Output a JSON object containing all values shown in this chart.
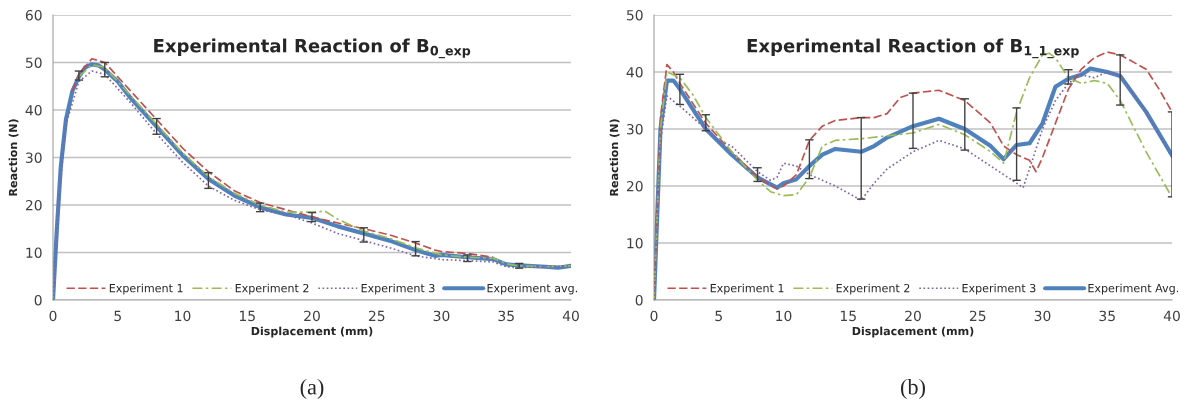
{
  "chart_data": [
    {
      "type": "line",
      "title": "Experimental Reaction of B$_{0_exp}$",
      "xlabel": "Displacement (mm)",
      "ylabel": "Reaction (N)",
      "xlim": [
        0,
        40
      ],
      "xticks": [
        0,
        5,
        10,
        15,
        20,
        25,
        30,
        35,
        40
      ],
      "ylim": [
        0,
        60
      ],
      "yticks": [
        0,
        10,
        20,
        30,
        40,
        50,
        60
      ],
      "grid": "y",
      "legend": "bottom",
      "annotations": [
        "(a)"
      ],
      "series": [
        {
          "name": "Experiment 1",
          "color": "#c0504d",
          "line_style": "dashed",
          "x": [
            1.5,
            2,
            3,
            4,
            6,
            8,
            10,
            12,
            14,
            16,
            18,
            20,
            22,
            24,
            26,
            28,
            29.5,
            30,
            32,
            34
          ],
          "values": [
            44,
            47.5,
            50.8,
            50,
            44,
            38,
            32,
            27,
            23,
            20.5,
            19,
            17.5,
            16.2,
            15,
            13.7,
            12,
            10.5,
            10.2,
            9.8,
            9
          ]
        },
        {
          "name": "Experiment 2",
          "color": "#9bbb59",
          "line_style": "dashdot",
          "x": [
            2,
            3,
            4,
            6,
            8,
            10,
            12,
            14,
            16,
            18,
            20,
            21,
            22,
            24,
            26,
            28,
            30,
            32,
            34,
            35,
            36,
            38,
            40
          ],
          "values": [
            47,
            49.5,
            49,
            43,
            37,
            31,
            26,
            22.5,
            20,
            18.5,
            18.5,
            18.7,
            17,
            14.5,
            13,
            11,
            9.5,
            9,
            8.8,
            7.6,
            7.2,
            7,
            7.2
          ]
        },
        {
          "name": "Experiment 3",
          "color": "#8064a2",
          "line_style": "dotted",
          "x": [
            0,
            0.5,
            1,
            2,
            3,
            4,
            6,
            8,
            10,
            12,
            14,
            16,
            18,
            20,
            22,
            24,
            26,
            28,
            30,
            32,
            34,
            35,
            36,
            38,
            40
          ],
          "values": [
            0,
            23,
            37,
            46,
            48.2,
            47.5,
            41.5,
            35,
            29,
            24,
            21,
            19,
            18,
            16.2,
            14,
            12.5,
            11,
            9.3,
            8.5,
            8.3,
            8,
            7,
            6.8,
            7,
            7.2
          ]
        },
        {
          "name": "Experiment avg.",
          "color": "#4f81bd",
          "line_style": "solid",
          "x": [
            0,
            0.3,
            0.6,
            1,
            1.5,
            2,
            2.5,
            3,
            3.5,
            4,
            5,
            6,
            8,
            10,
            12,
            14,
            16,
            18,
            20,
            22,
            24,
            26,
            28,
            29.5,
            30,
            32,
            34,
            35,
            36,
            38,
            39,
            40
          ],
          "values": [
            0,
            15,
            28,
            38,
            44,
            47,
            49,
            49.6,
            49.4,
            48.5,
            46,
            42.5,
            36.5,
            30.5,
            25.5,
            22,
            19.5,
            18,
            17.3,
            15.5,
            14,
            12.5,
            10.5,
            9.3,
            9.5,
            9,
            8.6,
            7.5,
            7.3,
            7,
            6.8,
            7.2
          ],
          "errors": [
            null,
            null,
            null,
            null,
            null,
            [
              46.3,
              48.2
            ],
            null,
            null,
            null,
            [
              47,
              50
            ],
            null,
            null,
            [
              34.9,
              38.2
            ],
            null,
            [
              23.5,
              26.8
            ],
            null,
            [
              18.6,
              20.4
            ],
            null,
            [
              16.5,
              18.4
            ],
            null,
            [
              12.2,
              15.2
            ],
            null,
            [
              9.3,
              12.3
            ],
            null,
            null,
            [
              8.1,
              9.5
            ],
            null,
            null,
            [
              6.7,
              7.7
            ],
            null,
            null,
            null
          ]
        }
      ]
    },
    {
      "type": "line",
      "title": "Experimental Reaction of B$_{1_1_exp}$",
      "xlabel": "Displacement (mm)",
      "ylabel": "Reaction (N)",
      "xlim": [
        0,
        40
      ],
      "xticks": [
        0,
        5,
        10,
        15,
        20,
        25,
        30,
        35,
        40
      ],
      "ylim": [
        0,
        50
      ],
      "yticks": [
        0,
        10,
        20,
        30,
        40,
        50
      ],
      "grid": "y",
      "legend": "bottom",
      "annotations": [
        "(b)"
      ],
      "series": [
        {
          "name": "Experiment 1",
          "color": "#c0504d",
          "line_style": "dashed",
          "x": [
            0,
            0.5,
            1,
            1.5,
            2,
            4,
            6,
            8,
            9.5,
            10,
            11,
            12,
            13,
            14,
            16,
            17,
            18,
            19,
            20,
            22,
            24,
            26,
            27,
            28,
            29,
            29.5,
            30,
            31,
            32,
            33,
            34,
            35,
            36,
            38,
            39,
            40
          ],
          "values": [
            0,
            32,
            41.3,
            40,
            38,
            31,
            26,
            21.5,
            19.5,
            20,
            22,
            28,
            30.5,
            31.5,
            32,
            32,
            32.7,
            35.5,
            36.3,
            36.8,
            35,
            31,
            27,
            25.5,
            24.5,
            22.5,
            25,
            31,
            37,
            40.5,
            42.5,
            43.5,
            43,
            40.5,
            37,
            33
          ]
        },
        {
          "name": "Experiment 2",
          "color": "#9bbb59",
          "line_style": "dashdot",
          "x": [
            0,
            0.5,
            1,
            2,
            3,
            4,
            6,
            8,
            9,
            10,
            11,
            12,
            13,
            14,
            16,
            18,
            20,
            22,
            24,
            26,
            27,
            28,
            29,
            30,
            30.5,
            31,
            32,
            33,
            34,
            35,
            36,
            38,
            40
          ],
          "values": [
            0,
            30,
            40,
            39,
            36,
            32,
            26,
            21,
            19,
            18.3,
            18.5,
            21.5,
            27,
            28,
            28.3,
            28.8,
            29.3,
            30.8,
            29,
            26,
            24,
            33,
            39,
            43,
            43.3,
            42.5,
            39,
            38,
            38.5,
            38,
            35,
            26,
            18
          ]
        },
        {
          "name": "Experiment 3",
          "color": "#8064a2",
          "line_style": "dotted",
          "x": [
            0,
            0.5,
            1,
            2,
            4,
            5,
            6,
            8,
            9,
            9.5,
            10,
            11,
            12,
            14,
            16,
            17,
            18,
            19,
            20,
            22,
            24,
            26,
            27,
            28,
            28.5,
            29,
            30,
            31,
            32,
            33,
            34,
            35,
            36,
            38,
            40
          ],
          "values": [
            0,
            28,
            35.8,
            34,
            30,
            28,
            27,
            22.5,
            21,
            21.5,
            24,
            23.5,
            22,
            20,
            17.5,
            20.5,
            23,
            24.5,
            26,
            28,
            26.5,
            23.5,
            22,
            20.5,
            19.7,
            23,
            30,
            35,
            38,
            39.5,
            39,
            40,
            39.5,
            33,
            25
          ]
        },
        {
          "name": "Experiment Avg.",
          "color": "#4f81bd",
          "line_style": "solid",
          "x": [
            0,
            0.5,
            1,
            1.5,
            2,
            3,
            4,
            6,
            8,
            9.5,
            10,
            11,
            12,
            13,
            14,
            16,
            17,
            18,
            20,
            22,
            24,
            26,
            27,
            28,
            29,
            30,
            31,
            32,
            33,
            33.7,
            35,
            36,
            38,
            40
          ],
          "values": [
            0,
            30,
            38.5,
            38.5,
            37,
            33.5,
            30,
            25.5,
            21.5,
            19.7,
            20.5,
            21.2,
            23.5,
            25.5,
            26.5,
            26,
            27,
            28.5,
            30.5,
            31.8,
            30,
            27,
            24.7,
            27.2,
            27.5,
            31,
            37.4,
            38.8,
            39.5,
            40.6,
            40,
            39.3,
            33,
            25.4
          ],
          "errors": [
            null,
            null,
            null,
            null,
            [
              34.3,
              39.6
            ],
            null,
            [
              29.7,
              32.5
            ],
            null,
            [
              20.8,
              23.2
            ],
            null,
            null,
            null,
            [
              21.3,
              28.1
            ],
            null,
            null,
            [
              17.7,
              32
            ],
            null,
            null,
            [
              26.6,
              36.3
            ],
            null,
            [
              26.3,
              35.3
            ],
            null,
            null,
            [
              21,
              33.7
            ],
            null,
            null,
            null,
            [
              37.9,
              40.4
            ],
            null,
            null,
            null,
            [
              34.2,
              43
            ],
            null,
            [
              18.1,
              33
            ]
          ]
        }
      ]
    }
  ]
}
